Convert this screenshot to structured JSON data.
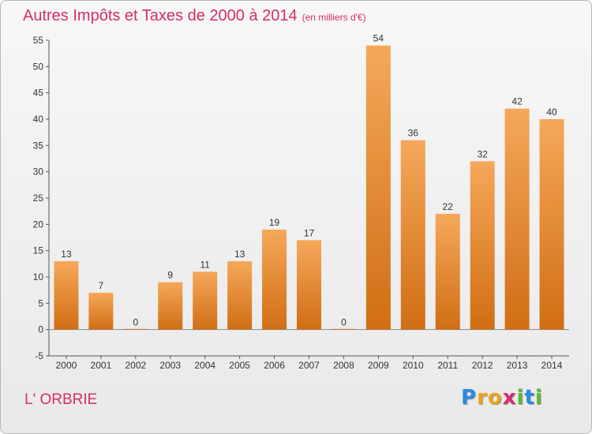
{
  "title": "Autres Impôts et Taxes de 2000 à 2014",
  "subtitle": "(en milliers d'€)",
  "commune": "L' ORBRIE",
  "logo": {
    "letters": [
      "P",
      "r",
      "o",
      "x",
      "i",
      "t",
      "i"
    ],
    "colors": [
      "#2a8be0",
      "#e8a41a",
      "#e8a41a",
      "#d52d6a",
      "#5fb82d",
      "#2a8be0",
      "#5fb82d"
    ]
  },
  "colors": {
    "bar_light": "#f5a85a",
    "bar_dark": "#d06e14",
    "title": "#d52d6a"
  },
  "chart_data": {
    "type": "bar",
    "categories": [
      "2000",
      "2001",
      "2002",
      "2003",
      "2004",
      "2005",
      "2006",
      "2007",
      "2008",
      "2009",
      "2010",
      "2011",
      "2012",
      "2013",
      "2014"
    ],
    "values": [
      13,
      7,
      0,
      9,
      11,
      13,
      19,
      17,
      0,
      54,
      36,
      22,
      32,
      42,
      40
    ],
    "title": "Autres Impôts et Taxes de 2000 à 2014",
    "xlabel": "",
    "ylabel": "",
    "ylim": [
      -5,
      55
    ],
    "yticks": [
      -5,
      0,
      5,
      10,
      15,
      20,
      25,
      30,
      35,
      40,
      45,
      50,
      55
    ],
    "grid": false
  }
}
